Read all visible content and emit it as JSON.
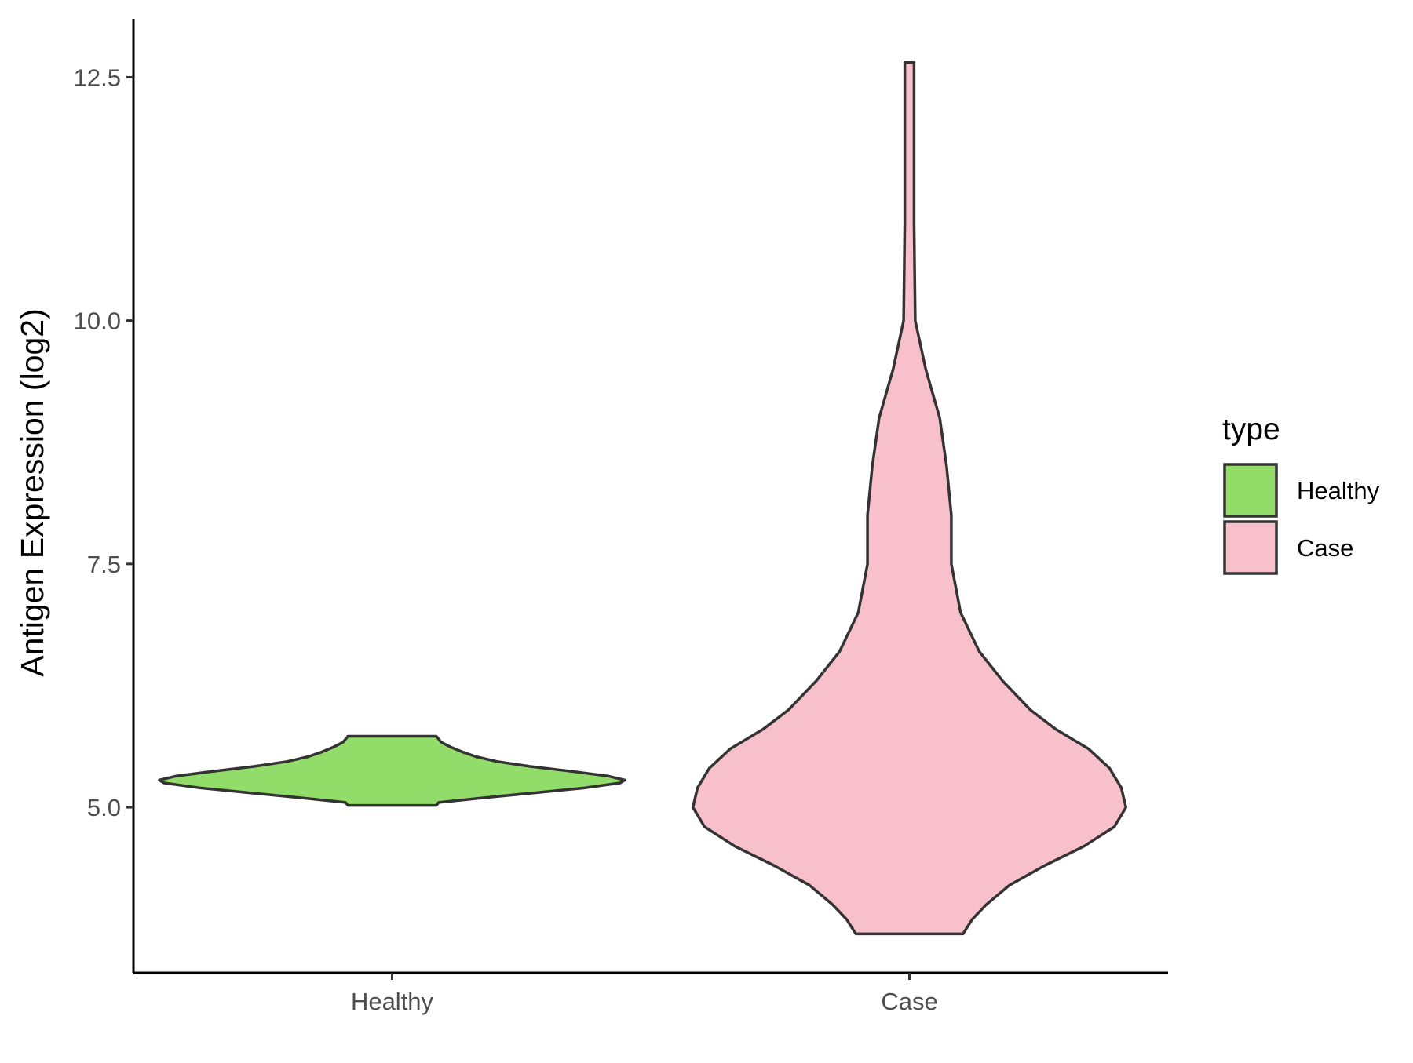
{
  "chart_data": {
    "type": "violin",
    "title": "",
    "xlabel": "",
    "ylabel": "Antigen Expression (log2)",
    "categories": [
      "Healthy",
      "Case"
    ],
    "ylim": [
      3.3,
      13.1
    ],
    "yticks": [
      {
        "value": 5.0,
        "label": "5.0"
      },
      {
        "value": 7.5,
        "label": "7.5"
      },
      {
        "value": 10.0,
        "label": "10.0"
      },
      {
        "value": 12.5,
        "label": "12.5"
      }
    ],
    "grid": false,
    "legend": {
      "title": "type",
      "position": "right",
      "entries": [
        {
          "label": "Healthy",
          "color": "#92dc6a"
        },
        {
          "label": "Case",
          "color": "#f8c0cb"
        }
      ]
    },
    "series": [
      {
        "name": "Healthy",
        "color": "#92dc6a",
        "min": 5.02,
        "max": 5.73,
        "density": [
          [
            5.02,
            0.19
          ],
          [
            5.05,
            0.2
          ],
          [
            5.1,
            0.4
          ],
          [
            5.15,
            0.62
          ],
          [
            5.2,
            0.83
          ],
          [
            5.25,
            0.98
          ],
          [
            5.28,
            1.0
          ],
          [
            5.32,
            0.93
          ],
          [
            5.37,
            0.77
          ],
          [
            5.42,
            0.59
          ],
          [
            5.47,
            0.45
          ],
          [
            5.52,
            0.36
          ],
          [
            5.57,
            0.3
          ],
          [
            5.62,
            0.25
          ],
          [
            5.67,
            0.21
          ],
          [
            5.7,
            0.2
          ],
          [
            5.73,
            0.19
          ]
        ]
      },
      {
        "name": "Case",
        "color": "#f8c0cb",
        "min": 3.7,
        "max": 12.65,
        "density": [
          [
            3.7,
            0.23
          ],
          [
            3.85,
            0.27
          ],
          [
            4.0,
            0.33
          ],
          [
            4.2,
            0.43
          ],
          [
            4.4,
            0.58
          ],
          [
            4.6,
            0.75
          ],
          [
            4.8,
            0.88
          ],
          [
            5.0,
            0.93
          ],
          [
            5.2,
            0.91
          ],
          [
            5.4,
            0.86
          ],
          [
            5.6,
            0.77
          ],
          [
            5.8,
            0.63
          ],
          [
            6.0,
            0.52
          ],
          [
            6.3,
            0.4
          ],
          [
            6.6,
            0.3
          ],
          [
            7.0,
            0.22
          ],
          [
            7.5,
            0.18
          ],
          [
            8.0,
            0.18
          ],
          [
            8.5,
            0.16
          ],
          [
            9.0,
            0.13
          ],
          [
            9.5,
            0.07
          ],
          [
            10.0,
            0.025
          ],
          [
            11.0,
            0.02
          ],
          [
            12.0,
            0.02
          ],
          [
            12.65,
            0.02
          ]
        ]
      }
    ]
  }
}
